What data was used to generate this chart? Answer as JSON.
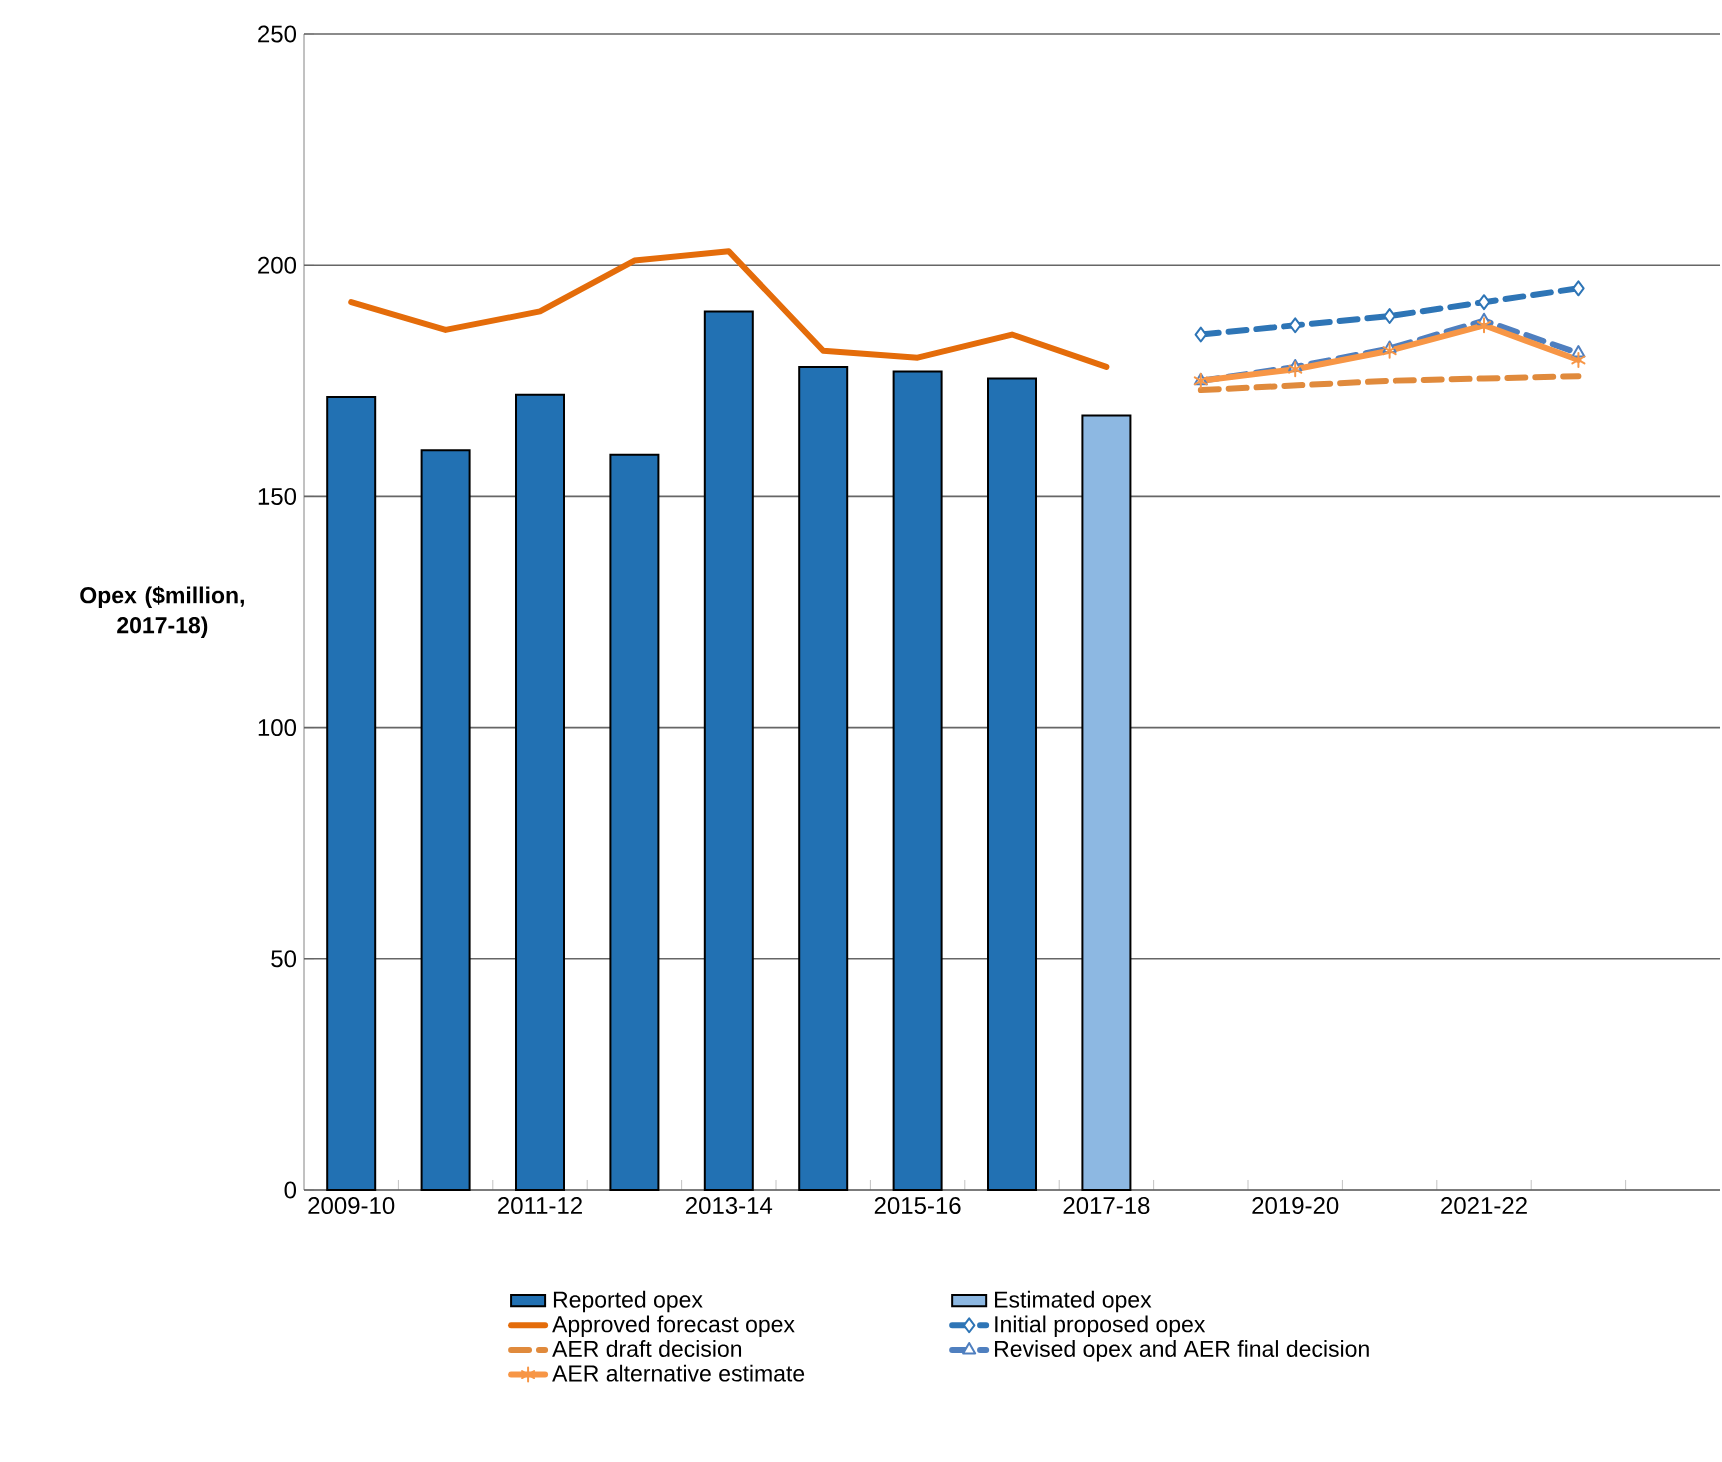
{
  "chart_data": {
    "type": "bar",
    "ylabel": "**Opex ($million, 2017-18)**",
    "categories": [
      "2009-10",
      null,
      "2011-12",
      null,
      "2013-14",
      null,
      "2015-16",
      null,
      "2017-18",
      null,
      "2019-20",
      null,
      "2021-22",
      null,
      null
    ],
    "series": [
      {
        "name": "Reported opex",
        "color": "#2271b3",
        "values": [
          171.5,
          160,
          172,
          159,
          190,
          178,
          177,
          175.5,
          null,
          null,
          null,
          null,
          null,
          null,
          null
        ]
      },
      {
        "name": "Estimated opex",
        "color": "#8db8e2",
        "values": [
          null,
          null,
          null,
          null,
          null,
          null,
          null,
          null,
          167.5,
          null,
          null,
          null,
          null,
          null,
          null
        ]
      },
      {
        "name": "Approved forecast opex",
        "type": "line",
        "color": "#e46c0a",
        "line_style": "solid",
        "marker": "none",
        "values": [
          192,
          186,
          190,
          201,
          203,
          181.5,
          180,
          185,
          178,
          null,
          null,
          null,
          null,
          null,
          null
        ]
      },
      {
        "name": "Initial proposed opex",
        "type": "line",
        "color": "#2e75b6",
        "line_style": "dashed",
        "marker": "diamond",
        "values": [
          null,
          null,
          null,
          null,
          null,
          null,
          null,
          null,
          null,
          185,
          187,
          189,
          192,
          195,
          null
        ]
      },
      {
        "name": "AER draft decision",
        "type": "line",
        "color": "#e08a3c",
        "line_style": "dashed",
        "marker": "none",
        "values": [
          null,
          null,
          null,
          null,
          null,
          null,
          null,
          null,
          null,
          173,
          174,
          175,
          175.5,
          176,
          null
        ]
      },
      {
        "name": "Revised opex and AER final decision",
        "type": "line",
        "color": "#4f7fbf",
        "line_style": "dashed",
        "marker": "triangle",
        "values": [
          null,
          null,
          null,
          null,
          null,
          null,
          null,
          null,
          null,
          175,
          178,
          182,
          188,
          181,
          null
        ]
      },
      {
        "name": "AER alternative estimate",
        "type": "line",
        "color": "#f79646",
        "line_style": "solid",
        "marker": "cross",
        "values": [
          null,
          null,
          null,
          null,
          null,
          null,
          null,
          null,
          null,
          175,
          177.5,
          181.5,
          187,
          179.5,
          null
        ]
      }
    ],
    "ylim": [
      0,
      250
    ],
    "yticks": [
      0,
      50,
      100,
      150,
      200,
      250
    ],
    "grid": "y",
    "legend": "bottom"
  }
}
